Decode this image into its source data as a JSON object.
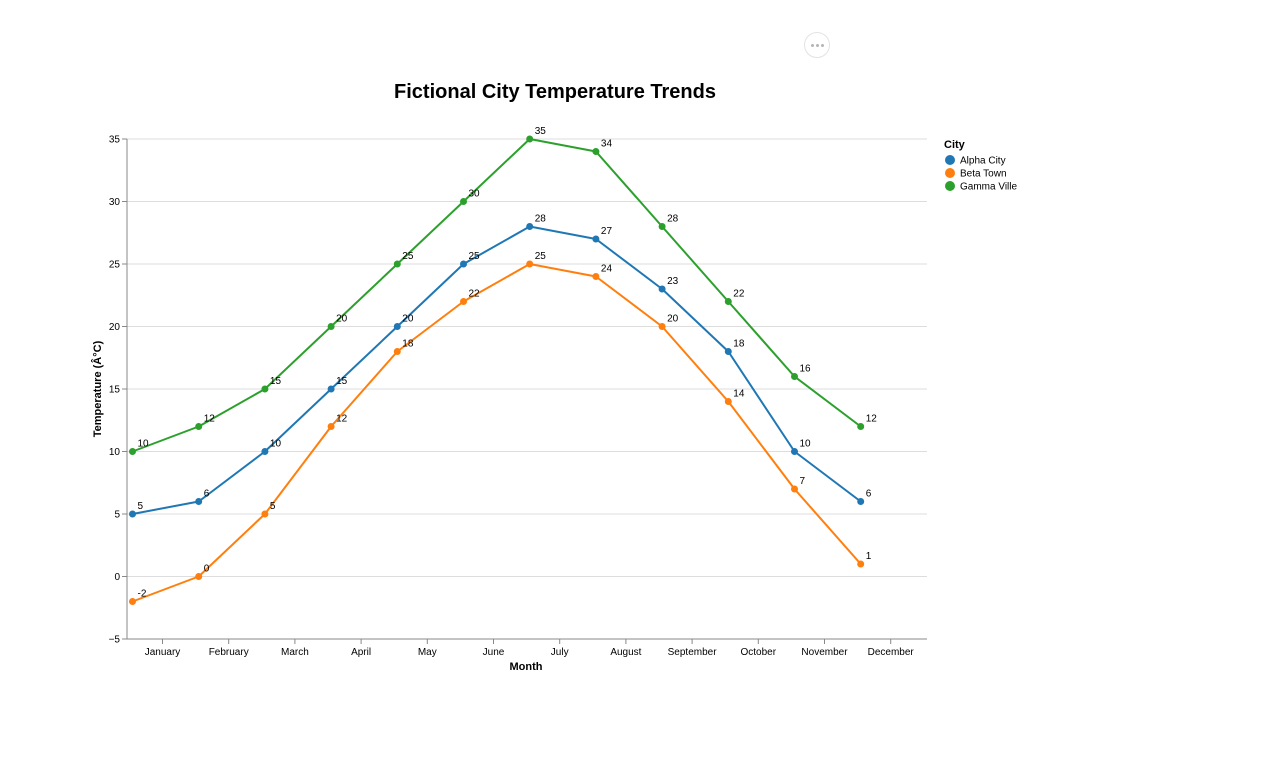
{
  "toolbar": {
    "actions_icon": "more-horizontal-icon"
  },
  "chart_data": {
    "type": "line",
    "title": "Fictional City Temperature Trends",
    "xlabel": "Month",
    "ylabel": "Temperature (Â°C)",
    "ylim": [
      -5,
      35
    ],
    "yticks": [
      -5,
      0,
      5,
      10,
      15,
      20,
      25,
      30,
      35
    ],
    "ytick_labels": [
      "−5",
      "0",
      "5",
      "10",
      "15",
      "20",
      "25",
      "30",
      "35"
    ],
    "grid": true,
    "categories": [
      "January",
      "February",
      "March",
      "April",
      "May",
      "June",
      "July",
      "August",
      "September",
      "October",
      "November",
      "December"
    ],
    "legend": {
      "title": "City",
      "placement": "right"
    },
    "series": [
      {
        "name": "Alpha City",
        "color": "#1f77b4",
        "values": [
          5,
          6,
          10,
          15,
          20,
          25,
          28,
          27,
          23,
          18,
          10,
          6
        ]
      },
      {
        "name": "Beta Town",
        "color": "#ff7f0e",
        "values": [
          -2,
          0,
          5,
          12,
          18,
          22,
          25,
          24,
          20,
          14,
          7,
          1
        ]
      },
      {
        "name": "Gamma Ville",
        "color": "#2ca02c",
        "values": [
          10,
          12,
          15,
          20,
          25,
          30,
          35,
          34,
          28,
          22,
          16,
          12
        ]
      }
    ]
  }
}
